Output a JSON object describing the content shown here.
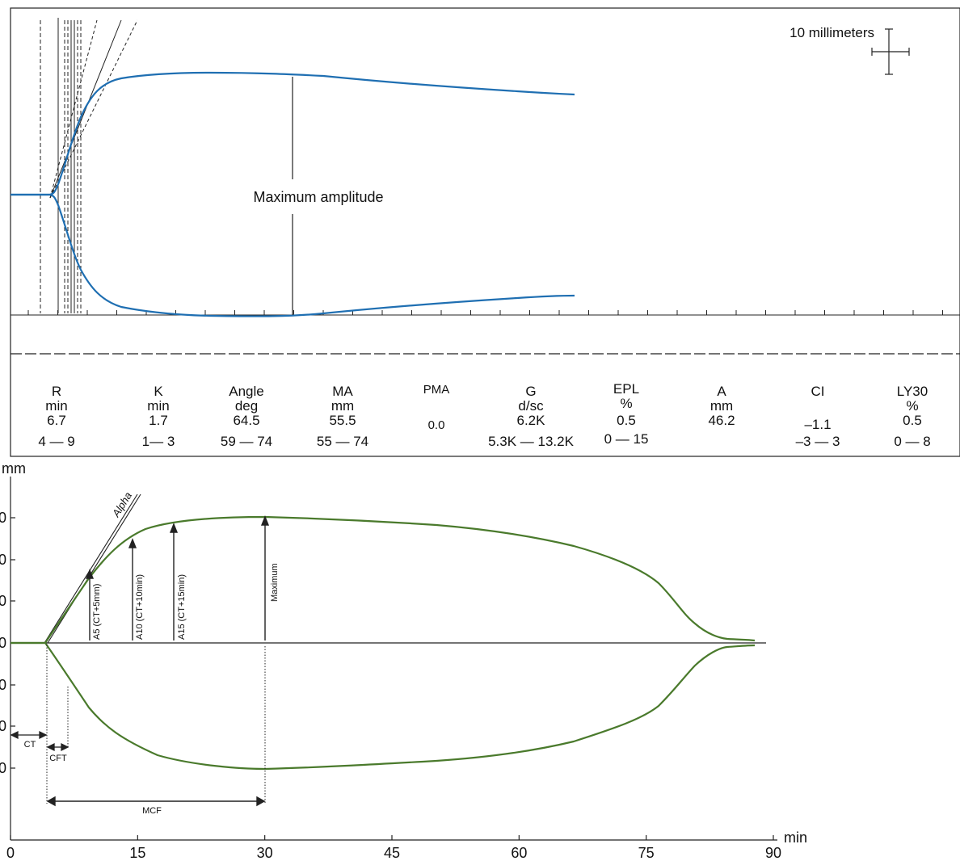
{
  "teg": {
    "scale_label": "10 millimeters",
    "ma_label": "Maximum amplitude",
    "trace_color": "#1f6fb2",
    "parameters": [
      {
        "name": "R",
        "unit": "min",
        "value": "6.7",
        "range": "4 — 9"
      },
      {
        "name": "K",
        "unit": "min",
        "value": "1.7",
        "range": "1— 3"
      },
      {
        "name": "Angle",
        "unit": "deg",
        "value": "64.5",
        "range": "59 — 74"
      },
      {
        "name": "MA",
        "unit": "mm",
        "value": "55.5",
        "range": "55 — 74"
      },
      {
        "name": "PMA",
        "unit": "",
        "value": "0.0",
        "range": ""
      },
      {
        "name": "G",
        "unit": "d/sc",
        "value": "6.2K",
        "range": "5.3K — 13.2K"
      },
      {
        "name": "EPL",
        "unit": "%",
        "value": "0.5",
        "range": "0 — 15"
      },
      {
        "name": "A",
        "unit": "mm",
        "value": "46.2",
        "range": ""
      },
      {
        "name": "CI",
        "unit": "",
        "value": "–1.1",
        "range": "–3 — 3"
      },
      {
        "name": "LY30",
        "unit": "%",
        "value": "0.5",
        "range": "0 — 8"
      }
    ]
  },
  "rotem": {
    "trace_color": "#4a7a2c",
    "y_unit": "mm",
    "x_unit": "min",
    "y_ticks": [
      "0",
      "0",
      "0",
      "0",
      "0",
      "0",
      "0"
    ],
    "x_ticks": [
      {
        "label": "0",
        "value": 0
      },
      {
        "label": "15",
        "value": 15
      },
      {
        "label": "30",
        "value": 30
      },
      {
        "label": "45",
        "value": 45
      },
      {
        "label": "60",
        "value": 60
      },
      {
        "label": "75",
        "value": 75
      },
      {
        "label": "90",
        "value": 90
      }
    ],
    "labels": {
      "alpha": "Alpha",
      "a5": "A5 (CT+5mm)",
      "a10": "A10 (CT+10min)",
      "a15": "A15 (CT+15min)",
      "maximum": "Maximum",
      "ct": "CT",
      "cft": "CFT",
      "mcf": "MCF"
    }
  }
}
